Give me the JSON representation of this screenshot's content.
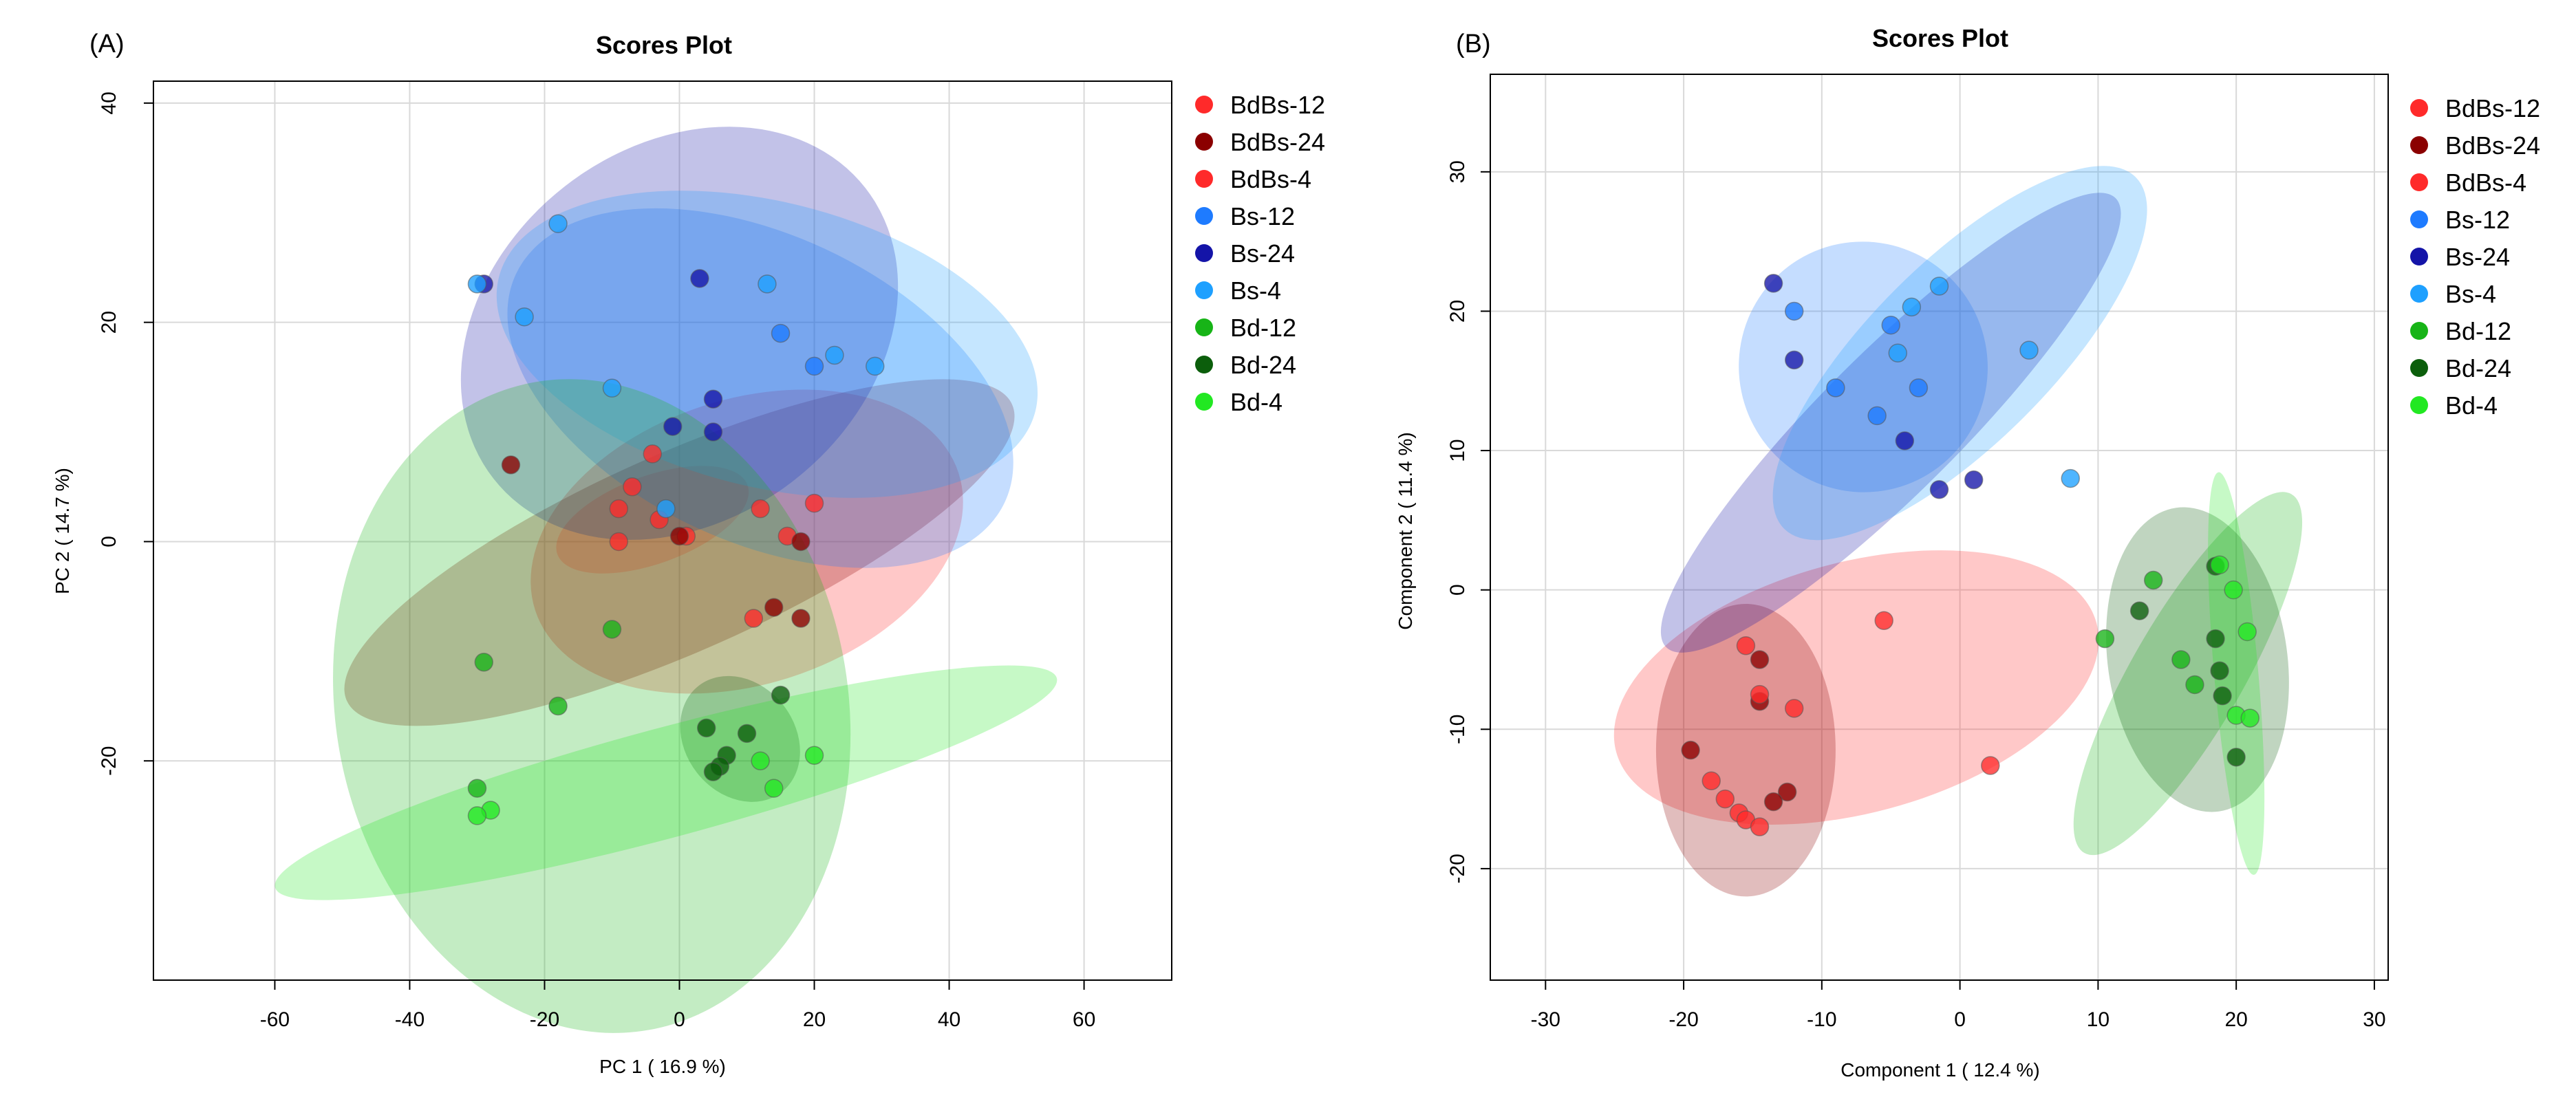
{
  "chart_data": [
    {
      "type": "scatter",
      "panel": "(A)",
      "title": "Scores Plot",
      "xlabel": "PC 1 ( 16.9 %)",
      "ylabel": "PC 2 ( 14.7 %)",
      "xlim": [
        -78,
        73
      ],
      "ylim": [
        -40,
        42
      ],
      "xticks": [
        -60,
        -40,
        -20,
        0,
        20,
        40,
        60
      ],
      "yticks": [
        -20,
        0,
        20,
        40
      ],
      "grid": true,
      "legend": "right",
      "series": [
        {
          "name": "BdBs-12",
          "color": "#ff2a2a",
          "points": [
            [
              -4,
              8
            ],
            [
              -7,
              5
            ],
            [
              -9,
              3
            ],
            [
              -3,
              2
            ],
            [
              -9,
              0
            ],
            [
              1,
              0.5
            ],
            [
              12,
              3
            ],
            [
              20,
              3.5
            ],
            [
              16,
              0.5
            ],
            [
              11,
              -7
            ]
          ],
          "ellipse": {
            "cx": 10,
            "cy": 0,
            "rx": 33,
            "ry": 13,
            "angle": -18
          }
        },
        {
          "name": "BdBs-24",
          "color": "#8b0000",
          "points": [
            [
              -25,
              7
            ],
            [
              0,
              0.5
            ],
            [
              18,
              0
            ],
            [
              14,
              -6
            ],
            [
              18,
              -7
            ]
          ],
          "ellipse": {
            "cx": 0,
            "cy": -1,
            "rx": 54,
            "ry": 9,
            "angle": -24
          }
        },
        {
          "name": "BdBs-4",
          "color": "#ff2a2a",
          "points": [],
          "ellipse": {
            "cx": -4,
            "cy": 2,
            "rx": 15,
            "ry": 4,
            "angle": -20
          }
        },
        {
          "name": "Bs-12",
          "color": "#1e7bff",
          "points": [
            [
              15,
              19
            ],
            [
              20,
              16
            ]
          ],
          "ellipse": {
            "cx": 12,
            "cy": 14,
            "rx": 40,
            "ry": 14,
            "angle": 25
          }
        },
        {
          "name": "Bs-24",
          "color": "#1414a8",
          "points": [
            [
              -29,
              23.5
            ],
            [
              3,
              24
            ],
            [
              5,
              13
            ],
            [
              5,
              10
            ],
            [
              -1,
              10.5
            ]
          ],
          "ellipse": {
            "cx": 0,
            "cy": 19,
            "rx": 35,
            "ry": 17,
            "angle": -38
          }
        },
        {
          "name": "Bs-4",
          "color": "#1ea0ff",
          "points": [
            [
              -18,
              29
            ],
            [
              -30,
              23.5
            ],
            [
              -23,
              20.5
            ],
            [
              13,
              23.5
            ],
            [
              23,
              17
            ],
            [
              29,
              16
            ],
            [
              -10,
              14
            ],
            [
              -2,
              3
            ]
          ],
          "ellipse": {
            "cx": 13,
            "cy": 18,
            "rx": 41,
            "ry": 13,
            "angle": 14
          }
        },
        {
          "name": "Bd-12",
          "color": "#17b417",
          "points": [
            [
              -10,
              -8
            ],
            [
              -29,
              -11
            ],
            [
              -18,
              -15
            ],
            [
              -30,
              -22.5
            ]
          ],
          "ellipse": {
            "cx": -13,
            "cy": -15,
            "rx": 38,
            "ry": 30,
            "angle": -10
          }
        },
        {
          "name": "Bd-24",
          "color": "#0b5e0b",
          "points": [
            [
              4,
              -17
            ],
            [
              10,
              -17.5
            ],
            [
              15,
              -14
            ],
            [
              7,
              -19.5
            ],
            [
              6,
              -20.5
            ],
            [
              5,
              -21
            ]
          ],
          "ellipse": {
            "cx": 9,
            "cy": -18,
            "rx": 10,
            "ry": 5,
            "angle": 52
          }
        },
        {
          "name": "Bd-4",
          "color": "#22e822",
          "points": [
            [
              -28,
              -24.5
            ],
            [
              -30,
              -25
            ],
            [
              12,
              -20
            ],
            [
              20,
              -19.5
            ],
            [
              14,
              -22.5
            ]
          ],
          "ellipse": {
            "cx": -2,
            "cy": -22,
            "rx": 60,
            "ry": 5,
            "angle": -15
          }
        }
      ]
    },
    {
      "type": "scatter",
      "panel": "(B)",
      "title": "Scores Plot",
      "xlabel": "Component 1 ( 12.4 %)",
      "ylabel": "Component 2 ( 11.4 %)",
      "xlim": [
        -34,
        31
      ],
      "ylim": [
        -28,
        37
      ],
      "xticks": [
        -30,
        -20,
        -10,
        0,
        10,
        20,
        30
      ],
      "yticks": [
        -20,
        -10,
        0,
        10,
        20,
        30
      ],
      "grid": true,
      "legend": "right",
      "series": [
        {
          "name": "BdBs-12",
          "color": "#ff2a2a",
          "points": [
            [
              -5.5,
              -2.2
            ],
            [
              2.2,
              -12.6
            ]
          ],
          "ellipse": {
            "cx": -7.5,
            "cy": -7,
            "rx": 18,
            "ry": 9,
            "angle": -15
          }
        },
        {
          "name": "BdBs-24",
          "color": "#8b0000",
          "points": [
            [
              -19.5,
              -11.5
            ],
            [
              -14.5,
              -5
            ],
            [
              -14.5,
              -8
            ],
            [
              -12.5,
              -14.5
            ],
            [
              -13.5,
              -15.2
            ]
          ],
          "ellipse": {
            "cx": -15.5,
            "cy": -11.5,
            "rx": 6.5,
            "ry": 10.5,
            "angle": 0
          }
        },
        {
          "name": "BdBs-4",
          "color": "#ff2a2a",
          "points": [
            [
              -15.5,
              -4
            ],
            [
              -14.5,
              -7.5
            ],
            [
              -12,
              -8.5
            ],
            [
              -18,
              -13.7
            ],
            [
              -17,
              -15
            ],
            [
              -16,
              -16
            ],
            [
              -15.5,
              -16.5
            ],
            [
              -14.5,
              -17
            ]
          ],
          "ellipse": null
        },
        {
          "name": "Bs-12",
          "color": "#1e7bff",
          "points": [
            [
              -12,
              20
            ],
            [
              -9,
              14.5
            ],
            [
              -6,
              12.5
            ],
            [
              -3,
              14.5
            ],
            [
              -5,
              19
            ]
          ],
          "ellipse": {
            "cx": -7,
            "cy": 16,
            "rx": 9,
            "ry": 9,
            "angle": -20
          }
        },
        {
          "name": "Bs-24",
          "color": "#1414a8",
          "points": [
            [
              -13.5,
              22
            ],
            [
              -12,
              16.5
            ],
            [
              -4,
              10.7
            ],
            [
              -1.5,
              7.2
            ],
            [
              1,
              7.9
            ]
          ],
          "ellipse": {
            "cx": -5,
            "cy": 12,
            "rx": 23,
            "ry": 5,
            "angle": -45
          }
        },
        {
          "name": "Bs-4",
          "color": "#1ea0ff",
          "points": [
            [
              -1.5,
              21.8
            ],
            [
              -3.5,
              20.3
            ],
            [
              -4.5,
              17
            ],
            [
              5,
              17.2
            ],
            [
              8,
              8
            ]
          ],
          "ellipse": {
            "cx": 0,
            "cy": 17,
            "rx": 18,
            "ry": 6.5,
            "angle": -45
          }
        },
        {
          "name": "Bd-12",
          "color": "#17b417",
          "points": [
            [
              14,
              0.7
            ],
            [
              10.5,
              -3.5
            ],
            [
              16,
              -5
            ],
            [
              17,
              -6.8
            ]
          ],
          "ellipse": {
            "cx": 16.5,
            "cy": -6,
            "rx": 15,
            "ry": 4,
            "angle": -60
          }
        },
        {
          "name": "Bd-24",
          "color": "#0b5e0b",
          "points": [
            [
              18.5,
              1.7
            ],
            [
              13,
              -1.5
            ],
            [
              18.5,
              -3.5
            ],
            [
              18.8,
              -5.8
            ],
            [
              19,
              -7.6
            ],
            [
              20,
              -12
            ]
          ],
          "ellipse": {
            "cx": 17.2,
            "cy": -5,
            "rx": 6.5,
            "ry": 11,
            "angle": -8
          }
        },
        {
          "name": "Bd-4",
          "color": "#22e822",
          "points": [
            [
              18.8,
              1.8
            ],
            [
              19.8,
              0
            ],
            [
              20.8,
              -3
            ],
            [
              20,
              -9
            ],
            [
              21,
              -9.2
            ]
          ],
          "ellipse": {
            "cx": 20,
            "cy": -6,
            "rx": 1.6,
            "ry": 14.5,
            "angle": -5
          }
        }
      ]
    }
  ]
}
